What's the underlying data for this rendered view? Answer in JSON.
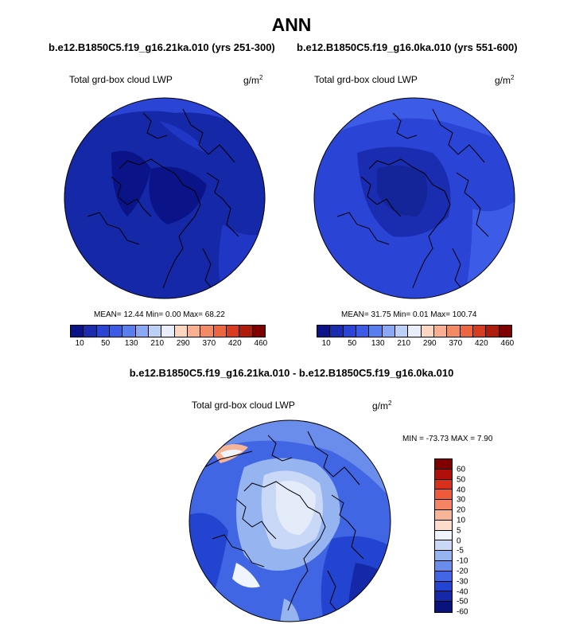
{
  "main_title": "ANN",
  "panels": {
    "left": {
      "case": "b.e12.B1850C5.f19_g16.21ka.010 (yrs 251-300)",
      "variable": "Total grd-box cloud LWP",
      "units": "g/m",
      "units_sup": "2",
      "stats_text": "MEAN=  12.44  Min=   0.00  Max=  68.22",
      "mean": 12.44,
      "min": 0.0,
      "max": 68.22
    },
    "right": {
      "case": "b.e12.B1850C5.f19_g16.0ka.010 (yrs 551-600)",
      "variable": "Total grd-box cloud LWP",
      "units": "g/m",
      "units_sup": "2",
      "stats_text": "MEAN=  31.75  Min=   0.01  Max= 100.74",
      "mean": 31.75,
      "min": 0.01,
      "max": 100.74
    },
    "diff": {
      "title": "b.e12.B1850C5.f19_g16.21ka.010 - b.e12.B1850C5.f19_g16.0ka.010",
      "variable": "Total grd-box cloud LWP",
      "units": "g/m",
      "units_sup": "2",
      "stats_text": "MIN = -73.73 MAX =   7.90",
      "min": -73.73,
      "max": 7.9
    }
  },
  "colorbar_top": {
    "colors": [
      "#0a1488",
      "#1a2cb0",
      "#2a44d6",
      "#3c5ce8",
      "#5a7ef0",
      "#8aa8f4",
      "#bcd0f8",
      "#e8eefc",
      "#fcd6c0",
      "#f8b090",
      "#f48a64",
      "#ee6640",
      "#d83c20",
      "#b01c0c",
      "#800000"
    ],
    "tick_labels": [
      "10",
      "50",
      "130",
      "210",
      "290",
      "370",
      "420",
      "460"
    ]
  },
  "colorbar_diff": {
    "colors": [
      "#800000",
      "#b0100a",
      "#d8301a",
      "#ee5a3a",
      "#f48464",
      "#f8b496",
      "#fcdcca",
      "#f0f4fc",
      "#c8d8f6",
      "#96b4f0",
      "#6a8cea",
      "#4066e4",
      "#2244d0",
      "#1428a8",
      "#08147c"
    ],
    "tick_labels": [
      "60",
      "50",
      "40",
      "30",
      "20",
      "10",
      "5",
      "0",
      "-5",
      "-10",
      "-20",
      "-30",
      "-40",
      "-50",
      "-60"
    ]
  }
}
